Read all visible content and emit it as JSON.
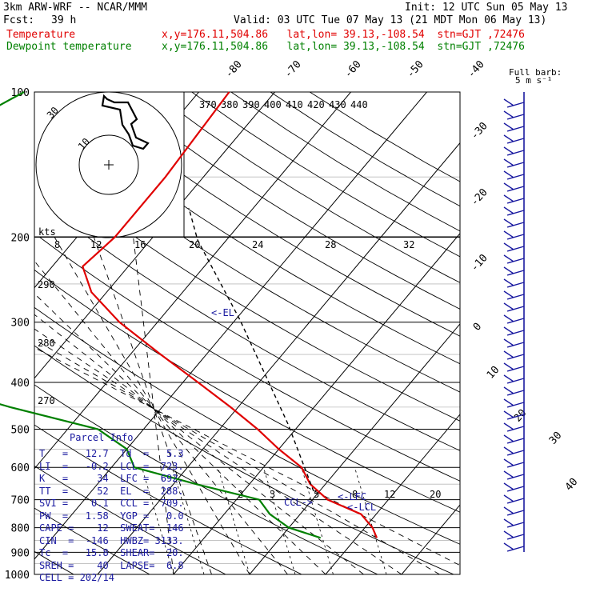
{
  "header": {
    "model_title": "3km ARW-WRF -- NCAR/MMM",
    "init": "Init: 12 UTC Sun 05 May 13",
    "fcst_label": "Fcst:",
    "fcst_value": "39 h",
    "valid": "Valid: 03 UTC Tue 07 May 13 (21 MDT Mon 06 May 13)",
    "temperature_label": "Temperature",
    "temperature_info": "x,y=176.11,504.86   lat,lon= 39.13,-108.54  stn=GJT ,72476",
    "dewpoint_label": "Dewpoint temperature",
    "dewpoint_info": "x,y=176.11,504.86   lat,lon= 39.13,-108.54  stn=GJT ,72476"
  },
  "wind_key": {
    "title": "Full barb:",
    "value": "5 m s⁻¹"
  },
  "parcel": {
    "title": "Parcel Info",
    "rows": [
      "T   =   12.7  Td  =   5.3",
      "LI  =   -0.2  LCL =  723.",
      "K   =     34  LFC =  692.",
      "TT  =     52  EL  =  288.",
      "SVI =    0.1  CCL =  709.",
      "PW  =   1.58  YGP =   0.0",
      "CAPE =    12  SWEAT=  146",
      "CIN  =  -146  HWBZ= 3133.",
      "Tc  =   15.8  SHEAR=  20.",
      "SREH =    40  LAPSE=  6.8",
      "CELL = 202/14"
    ]
  },
  "colors": {
    "temperature": "#e00000",
    "dewpoint": "#008000",
    "parcel_text": "#1a1aa0",
    "barbs": "#1a1aa0"
  },
  "chart_data": {
    "type": "skew-t",
    "pressure_levels": [
      100,
      200,
      300,
      400,
      500,
      600,
      700,
      800,
      900,
      1000
    ],
    "pressure_axis_labels": [
      "100",
      "200",
      "300",
      "400",
      "500",
      "600",
      "700",
      "800",
      "900",
      "1000"
    ],
    "isotherm_labels": [
      "-80",
      "-70",
      "-60",
      "-50",
      "-40",
      "-30",
      "-20",
      "-10",
      "0",
      "10",
      "20",
      "30",
      "40"
    ],
    "theta_e_labels": [
      "370",
      "380",
      "390",
      "400",
      "410",
      "420",
      "430",
      "440"
    ],
    "theta_labels": [
      "290",
      "280",
      "270"
    ],
    "mixing_ratio_labels": [
      "2",
      "3",
      "5",
      "8",
      "12",
      "20"
    ],
    "hodograph": {
      "speed_label": "kts",
      "ring_labels": [
        "30",
        "10"
      ],
      "speed_ticks": [
        "8",
        "12",
        "16",
        "20",
        "24",
        "28",
        "32"
      ]
    },
    "annotations": {
      "el": "<-EL",
      "lfc": "<-LFC",
      "lcl": "<-LCL",
      "ccl": "CCL->"
    },
    "temperature_profile": [
      {
        "p": 100,
        "t": -56
      },
      {
        "p": 150,
        "t": -55
      },
      {
        "p": 180,
        "t": -55
      },
      {
        "p": 200,
        "t": -55
      },
      {
        "p": 230,
        "t": -56
      },
      {
        "p": 260,
        "t": -52
      },
      {
        "p": 300,
        "t": -45
      },
      {
        "p": 350,
        "t": -36
      },
      {
        "p": 400,
        "t": -28
      },
      {
        "p": 450,
        "t": -21
      },
      {
        "p": 500,
        "t": -15
      },
      {
        "p": 550,
        "t": -10
      },
      {
        "p": 600,
        "t": -5
      },
      {
        "p": 650,
        "t": -2
      },
      {
        "p": 700,
        "t": 2
      },
      {
        "p": 750,
        "t": 8
      },
      {
        "p": 800,
        "t": 11
      },
      {
        "p": 840,
        "t": 12.7
      }
    ],
    "dewpoint_profile": [
      {
        "p": 100,
        "td": -83
      },
      {
        "p": 120,
        "td": -88
      },
      {
        "p": 150,
        "td": -88
      },
      {
        "p": 200,
        "td": -88
      },
      {
        "p": 250,
        "td": -81
      },
      {
        "p": 300,
        "td": -74
      },
      {
        "p": 350,
        "td": -71
      },
      {
        "p": 380,
        "td": -70
      },
      {
        "p": 400,
        "td": -64
      },
      {
        "p": 450,
        "td": -50
      },
      {
        "p": 500,
        "td": -36
      },
      {
        "p": 550,
        "td": -30
      },
      {
        "p": 600,
        "td": -27
      },
      {
        "p": 650,
        "td": -17
      },
      {
        "p": 700,
        "td": -7
      },
      {
        "p": 750,
        "td": -4
      },
      {
        "p": 800,
        "td": 0
      },
      {
        "p": 840,
        "td": 5.3
      }
    ]
  }
}
